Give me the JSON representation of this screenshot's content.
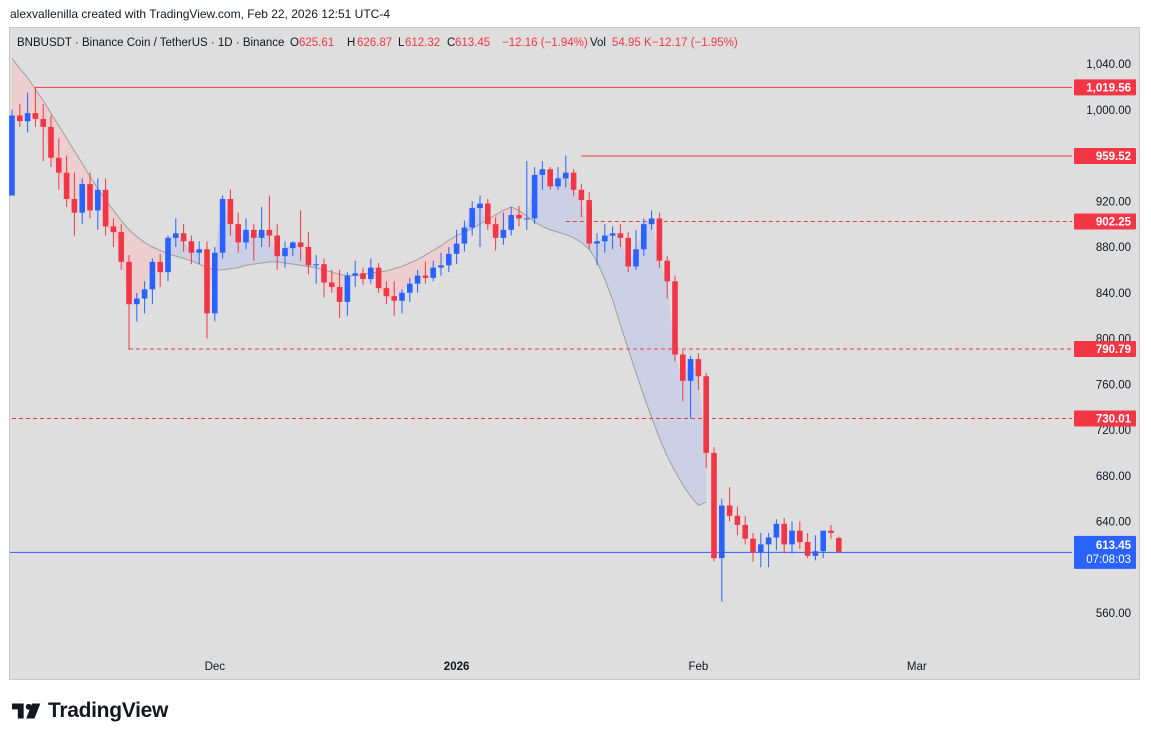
{
  "caption": "alexvallenilla created with TradingView.com, Feb 22, 2026 12:51 UTC-4",
  "brand": "TradingView",
  "colors": {
    "up": "#2962ff",
    "down": "#f23645",
    "background": "#dedede",
    "ma_line": "#9e9e9e",
    "cloud_bear": "#f2c7c7",
    "cloud_bull": "#c5cbe8",
    "price_line": "#2962ff"
  },
  "legend": {
    "symbol": "BNBUSDT · Binance Coin / TetherUS · 1D · Binance",
    "o_label": "O",
    "o_value": "625.61",
    "h_label": "H",
    "h_value": "626.87",
    "l_label": "L",
    "l_value": "612.32",
    "c_label": "C",
    "c_value": "613.45",
    "change": "−12.16 (−1.94%)",
    "vol_label": "Vol",
    "vol_value": "54.95 K",
    "vol_change": "−12.17 (−1.95%)"
  },
  "chart_data": {
    "type": "candlestick",
    "symbol": "BNBUSDT",
    "interval": "1D",
    "ylim": [
      530,
      1060
    ],
    "y_ticks": [
      {
        "value": 1040,
        "label": "1,040.00"
      },
      {
        "value": 1000,
        "label": "1,000.00"
      },
      {
        "value": 920,
        "label": "920.00"
      },
      {
        "value": 880,
        "label": "880.00"
      },
      {
        "value": 840,
        "label": "840.00"
      },
      {
        "value": 800,
        "label": "800.00"
      },
      {
        "value": 760,
        "label": "760.00"
      },
      {
        "value": 720,
        "label": "720.00"
      },
      {
        "value": 680,
        "label": "680.00"
      },
      {
        "value": 640,
        "label": "640.00"
      },
      {
        "value": 560,
        "label": "560.00"
      }
    ],
    "x_ticks": [
      {
        "index": 26,
        "label": "Dec",
        "bold": false
      },
      {
        "index": 57,
        "label": "2026",
        "bold": true
      },
      {
        "index": 88,
        "label": "Feb",
        "bold": false
      },
      {
        "index": 116,
        "label": "Mar",
        "bold": false
      }
    ],
    "levels": [
      {
        "value": 1019.56,
        "label": "1,019.56",
        "style": "solid",
        "start_index": 3
      },
      {
        "value": 959.52,
        "label": "959.52",
        "style": "solid",
        "start_index": 73
      },
      {
        "value": 902.25,
        "label": "902.25",
        "style": "dashed",
        "start_index": 71
      },
      {
        "value": 790.79,
        "label": "790.79",
        "style": "dashed",
        "start_index": 15
      },
      {
        "value": 730.01,
        "label": "730.01",
        "style": "dashed",
        "start_index": 0
      }
    ],
    "last_price": {
      "value": 613.45,
      "label": "613.45",
      "countdown": "07:08:03"
    },
    "candles": [
      {
        "o": 925,
        "h": 1000,
        "l": 925,
        "c": 995
      },
      {
        "o": 995,
        "h": 1005,
        "l": 985,
        "c": 990
      },
      {
        "o": 990,
        "h": 1015,
        "l": 980,
        "c": 997
      },
      {
        "o": 997,
        "h": 1020,
        "l": 985,
        "c": 992
      },
      {
        "o": 992,
        "h": 1005,
        "l": 955,
        "c": 985
      },
      {
        "o": 985,
        "h": 995,
        "l": 950,
        "c": 958
      },
      {
        "o": 958,
        "h": 975,
        "l": 930,
        "c": 945
      },
      {
        "o": 945,
        "h": 960,
        "l": 915,
        "c": 922
      },
      {
        "o": 922,
        "h": 945,
        "l": 890,
        "c": 910
      },
      {
        "o": 910,
        "h": 940,
        "l": 900,
        "c": 935
      },
      {
        "o": 935,
        "h": 945,
        "l": 905,
        "c": 912
      },
      {
        "o": 912,
        "h": 940,
        "l": 895,
        "c": 930
      },
      {
        "o": 930,
        "h": 940,
        "l": 890,
        "c": 898
      },
      {
        "o": 898,
        "h": 905,
        "l": 880,
        "c": 893
      },
      {
        "o": 893,
        "h": 900,
        "l": 860,
        "c": 867
      },
      {
        "o": 867,
        "h": 873,
        "l": 790,
        "c": 830
      },
      {
        "o": 830,
        "h": 840,
        "l": 815,
        "c": 835
      },
      {
        "o": 835,
        "h": 850,
        "l": 822,
        "c": 843
      },
      {
        "o": 843,
        "h": 870,
        "l": 830,
        "c": 867
      },
      {
        "o": 867,
        "h": 874,
        "l": 845,
        "c": 858
      },
      {
        "o": 858,
        "h": 890,
        "l": 850,
        "c": 888
      },
      {
        "o": 888,
        "h": 905,
        "l": 880,
        "c": 892
      },
      {
        "o": 892,
        "h": 900,
        "l": 876,
        "c": 885
      },
      {
        "o": 885,
        "h": 890,
        "l": 865,
        "c": 875
      },
      {
        "o": 875,
        "h": 885,
        "l": 865,
        "c": 878
      },
      {
        "o": 878,
        "h": 885,
        "l": 800,
        "c": 822
      },
      {
        "o": 822,
        "h": 880,
        "l": 815,
        "c": 875
      },
      {
        "o": 875,
        "h": 925,
        "l": 870,
        "c": 922
      },
      {
        "o": 922,
        "h": 930,
        "l": 890,
        "c": 900
      },
      {
        "o": 900,
        "h": 910,
        "l": 875,
        "c": 884
      },
      {
        "o": 884,
        "h": 905,
        "l": 878,
        "c": 895
      },
      {
        "o": 895,
        "h": 900,
        "l": 868,
        "c": 888
      },
      {
        "o": 888,
        "h": 915,
        "l": 880,
        "c": 895
      },
      {
        "o": 895,
        "h": 925,
        "l": 880,
        "c": 890
      },
      {
        "o": 890,
        "h": 900,
        "l": 860,
        "c": 872
      },
      {
        "o": 872,
        "h": 885,
        "l": 862,
        "c": 879
      },
      {
        "o": 879,
        "h": 885,
        "l": 872,
        "c": 884
      },
      {
        "o": 884,
        "h": 912,
        "l": 868,
        "c": 880
      },
      {
        "o": 880,
        "h": 893,
        "l": 856,
        "c": 864
      },
      {
        "o": 864,
        "h": 873,
        "l": 848,
        "c": 865
      },
      {
        "o": 865,
        "h": 870,
        "l": 836,
        "c": 849
      },
      {
        "o": 849,
        "h": 860,
        "l": 840,
        "c": 845
      },
      {
        "o": 845,
        "h": 860,
        "l": 818,
        "c": 832
      },
      {
        "o": 832,
        "h": 858,
        "l": 820,
        "c": 855
      },
      {
        "o": 855,
        "h": 868,
        "l": 845,
        "c": 857
      },
      {
        "o": 857,
        "h": 862,
        "l": 847,
        "c": 852
      },
      {
        "o": 852,
        "h": 870,
        "l": 848,
        "c": 862
      },
      {
        "o": 862,
        "h": 866,
        "l": 840,
        "c": 844
      },
      {
        "o": 844,
        "h": 850,
        "l": 830,
        "c": 837
      },
      {
        "o": 837,
        "h": 850,
        "l": 820,
        "c": 833
      },
      {
        "o": 833,
        "h": 843,
        "l": 822,
        "c": 840
      },
      {
        "o": 840,
        "h": 853,
        "l": 832,
        "c": 848
      },
      {
        "o": 848,
        "h": 860,
        "l": 840,
        "c": 855
      },
      {
        "o": 855,
        "h": 867,
        "l": 848,
        "c": 853
      },
      {
        "o": 853,
        "h": 868,
        "l": 850,
        "c": 862
      },
      {
        "o": 862,
        "h": 875,
        "l": 855,
        "c": 864
      },
      {
        "o": 864,
        "h": 880,
        "l": 858,
        "c": 874
      },
      {
        "o": 874,
        "h": 895,
        "l": 865,
        "c": 883
      },
      {
        "o": 883,
        "h": 903,
        "l": 876,
        "c": 897
      },
      {
        "o": 897,
        "h": 920,
        "l": 890,
        "c": 914
      },
      {
        "o": 914,
        "h": 925,
        "l": 880,
        "c": 918
      },
      {
        "o": 918,
        "h": 922,
        "l": 895,
        "c": 900
      },
      {
        "o": 900,
        "h": 906,
        "l": 877,
        "c": 888
      },
      {
        "o": 888,
        "h": 910,
        "l": 882,
        "c": 895
      },
      {
        "o": 895,
        "h": 915,
        "l": 890,
        "c": 908
      },
      {
        "o": 908,
        "h": 916,
        "l": 898,
        "c": 905
      },
      {
        "o": 905,
        "h": 955,
        "l": 895,
        "c": 905
      },
      {
        "o": 905,
        "h": 950,
        "l": 900,
        "c": 943
      },
      {
        "o": 943,
        "h": 955,
        "l": 930,
        "c": 948
      },
      {
        "o": 948,
        "h": 950,
        "l": 930,
        "c": 933
      },
      {
        "o": 933,
        "h": 950,
        "l": 930,
        "c": 940
      },
      {
        "o": 940,
        "h": 960,
        "l": 932,
        "c": 945
      },
      {
        "o": 945,
        "h": 948,
        "l": 925,
        "c": 930
      },
      {
        "o": 930,
        "h": 935,
        "l": 906,
        "c": 921
      },
      {
        "o": 921,
        "h": 928,
        "l": 878,
        "c": 883
      },
      {
        "o": 883,
        "h": 892,
        "l": 864,
        "c": 885
      },
      {
        "o": 885,
        "h": 900,
        "l": 875,
        "c": 890
      },
      {
        "o": 890,
        "h": 898,
        "l": 878,
        "c": 892
      },
      {
        "o": 892,
        "h": 900,
        "l": 880,
        "c": 888
      },
      {
        "o": 888,
        "h": 893,
        "l": 858,
        "c": 863
      },
      {
        "o": 863,
        "h": 895,
        "l": 860,
        "c": 878
      },
      {
        "o": 878,
        "h": 905,
        "l": 872,
        "c": 900
      },
      {
        "o": 900,
        "h": 912,
        "l": 895,
        "c": 905
      },
      {
        "o": 905,
        "h": 910,
        "l": 862,
        "c": 868
      },
      {
        "o": 868,
        "h": 872,
        "l": 835,
        "c": 850
      },
      {
        "o": 850,
        "h": 855,
        "l": 780,
        "c": 786
      },
      {
        "o": 786,
        "h": 790,
        "l": 745,
        "c": 763
      },
      {
        "o": 763,
        "h": 785,
        "l": 730,
        "c": 782
      },
      {
        "o": 782,
        "h": 787,
        "l": 755,
        "c": 767
      },
      {
        "o": 767,
        "h": 770,
        "l": 687,
        "c": 700
      },
      {
        "o": 700,
        "h": 705,
        "l": 605,
        "c": 608
      },
      {
        "o": 608,
        "h": 660,
        "l": 570,
        "c": 654
      },
      {
        "o": 654,
        "h": 670,
        "l": 640,
        "c": 645
      },
      {
        "o": 645,
        "h": 653,
        "l": 628,
        "c": 637
      },
      {
        "o": 637,
        "h": 645,
        "l": 620,
        "c": 625
      },
      {
        "o": 625,
        "h": 630,
        "l": 605,
        "c": 613
      },
      {
        "o": 613,
        "h": 630,
        "l": 600,
        "c": 620
      },
      {
        "o": 620,
        "h": 630,
        "l": 600,
        "c": 626
      },
      {
        "o": 626,
        "h": 642,
        "l": 615,
        "c": 638
      },
      {
        "o": 638,
        "h": 643,
        "l": 612,
        "c": 620
      },
      {
        "o": 620,
        "h": 640,
        "l": 612,
        "c": 632
      },
      {
        "o": 632,
        "h": 640,
        "l": 616,
        "c": 622
      },
      {
        "o": 622,
        "h": 630,
        "l": 608,
        "c": 610
      },
      {
        "o": 610,
        "h": 628,
        "l": 606,
        "c": 614
      },
      {
        "o": 614,
        "h": 632,
        "l": 608,
        "c": 632
      },
      {
        "o": 632,
        "h": 637,
        "l": 625,
        "c": 630
      },
      {
        "o": 625.61,
        "h": 626.87,
        "l": 612.32,
        "c": 613.45
      }
    ],
    "moving_average": [
      1045,
      1036,
      1028,
      1018,
      1008,
      997,
      986,
      975,
      964,
      953,
      942,
      931,
      921,
      912,
      903,
      895,
      889,
      884,
      880,
      877,
      874,
      872,
      870,
      868,
      865,
      862,
      860,
      860,
      861,
      862,
      864,
      865,
      866,
      867,
      867,
      866,
      865,
      864,
      863,
      862,
      860,
      858,
      856,
      855,
      855,
      856,
      857,
      858,
      859,
      861,
      863,
      866,
      869,
      873,
      877,
      881,
      886,
      890,
      893,
      896,
      900,
      904,
      908,
      912,
      915,
      912,
      907,
      902,
      898,
      895,
      893,
      891,
      888,
      884,
      878,
      867,
      852,
      834,
      812,
      791,
      770,
      750,
      731,
      713,
      697,
      684,
      672,
      662,
      654,
      657
    ],
    "moving_average_start_index": 0
  }
}
